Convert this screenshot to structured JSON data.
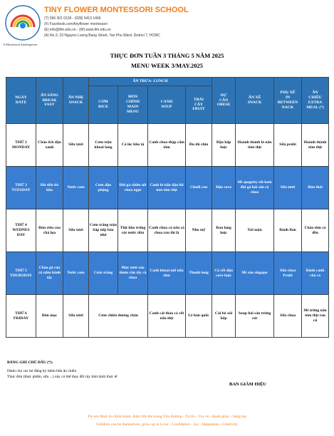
{
  "header": {
    "school": "TINY FLOWER MONTESSORI SCHOOL",
    "tagline": "A Montessori kindergarten",
    "contacts": [
      "(T) 096 301 0136 - (028) 5413 1466",
      "(F) Facebook.com/tinyflower montessori",
      "(E) info@tfm.edu.vn - (W) www.tfm.edu.vn",
      "(A) No.3, 23 Nguyen Luong Bang Street, Tan Phu Ward, District 7, HCMC"
    ]
  },
  "title": {
    "vi": "THỰC ĐƠN TUẦN 3 THÁNG 5 NĂM 2025",
    "en": "MENU WEEK 3/MAY.2025"
  },
  "table": {
    "lunch_header": "ĂN TRƯA- LUNCH",
    "headers": [
      "NGÀY\nDATE",
      "ĂN SÁNG\nBREAK\nFAST",
      "ĂN NHẸ\nSNACK",
      "CƠM\nRICE",
      "MÓN\nCHÍNH\nMAIN\nMENU",
      "CANH\nSOUP",
      "TRÁI\nCÂY\nFRUIT",
      "DỰ\nCẦN\nOBESE",
      "ĂN XẾ\nSNACK",
      "PHỤ XẾ\nIN\nBETWEEN\nNACK",
      "ĂN\nCHIỀU\nEXTRA\nMEAL (*)"
    ],
    "rows": [
      {
        "day": "THỨ 2\nMONDAY",
        "cells": [
          "Cháo ếch đậu xanh",
          "Sữa tươi",
          "Cơm trộn khoai lang",
          "Cá lóc kho tộ",
          "Canh chua thập cẩm tôm",
          "Đu đủ chín",
          "Đậu hấp luộc",
          "Hoành thánh lá nấu tôm thịt",
          "Sữa probi",
          "Hoành thánh tôm thịt"
        ]
      },
      {
        "day": "THỨ 3\nTUESDAY",
        "cells": [
          "Hủ tiếu bò kho",
          "Nước cam",
          "Cơm đậu phộng",
          "Đùi gà chiên sốt chua ngọt",
          "Canh bí nấu đậu hũ non tôm thịt",
          "Chuối cau",
          "Đậu cove",
          "Mì spagetty sốt kem đùi gà hải sản cà chua",
          "Sữa tươi",
          "Bún thái"
        ]
      },
      {
        "day": "THỨ 4\nWEDNES\nDAY",
        "cells": [
          "Bún riêu cua chả lụa",
          "Sữa tươi",
          "Cơm trắng trộn bắp nếp bào nhỏ",
          "Thịt kho trứng cút nước dừa",
          "Canh chua cá nấu cà chua rau thì là",
          "Nho mỹ",
          "Rau lang luộc",
          "Xôi mặn",
          "Bánh flan",
          "Cháo tôm cà dền"
        ]
      },
      {
        "day": "THỨ 5\nTHURSDAY",
        "cells": [
          "Cháo gà rau củ nấm hành tây",
          "Nước cam",
          "Cơm trắng",
          "Mực tươi xào thơm cần tây cà chua",
          "Canh khoai mỡ nấu tôm",
          "Thanh long",
          "Cà rốt đậu cove luộc",
          "Mì xào singapo",
          "Sữa chua Probi",
          "Bánh canh chả cá"
        ]
      },
      {
        "day": "THỨ 6\nFRIDAY",
        "cells": [
          "Bún mọc",
          "Sữa tươi",
          "Cơm chiên dương châu",
          "Canh cải thảo cà rốt nấu thịt",
          "Lê hàn quốc",
          "Cải bó xôi hấp",
          "Soup hải sản trứng cút",
          "Sữa chua",
          "Mì trứng nấu tôm thịt rau củ"
        ]
      }
    ]
  },
  "notes": {
    "title": "BẢNG GHI CHÚ DẤU (*):",
    "lines": [
      "Dành cho các bé đăng ký thêm bữa ăn chiều",
      "Thực đơn (thực phẩm, sữa ...) này có thể thay đổi tùy tình hình thực tế"
    ],
    "signature": "BAN GIÁM HIỆU"
  },
  "footer": [
    "Trẻ em được là chính mình, được lớn lên trong Yêu thương - Tự tin - Vui vẻ - Hạnh phúc - Sáng tạo",
    "Children can be themselves, grow up in Love - Confidence - Joy - Happiness - Creativity"
  ]
}
